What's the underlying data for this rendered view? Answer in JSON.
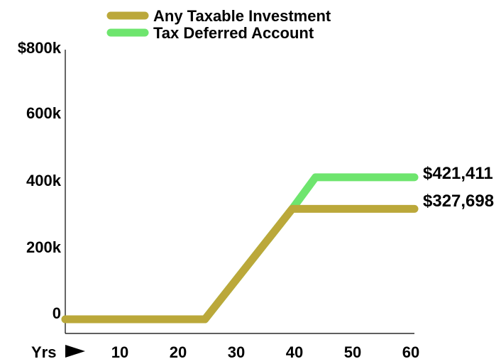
{
  "chart_data": {
    "type": "line",
    "title": "",
    "xlabel": "Yrs",
    "ylabel": "",
    "x_ticks": [
      "10",
      "20",
      "30",
      "40",
      "50",
      "60"
    ],
    "y_ticks": [
      "0",
      "200k",
      "400k",
      "600k",
      "$800k"
    ],
    "xlim": [
      0,
      60
    ],
    "ylim": [
      0,
      800000
    ],
    "grid": false,
    "legend_placement": "top",
    "series": [
      {
        "name": "Any Taxable Investment",
        "color": "#bba83a",
        "x": [
          0,
          24,
          39,
          60
        ],
        "y": [
          0,
          0,
          327698,
          327698
        ],
        "end_label": "$327,698"
      },
      {
        "name": "Tax Deferred Account",
        "color": "#6ee56e",
        "x": [
          0,
          24,
          39,
          43,
          60
        ],
        "y": [
          0,
          0,
          327698,
          421411,
          421411
        ],
        "end_label": "$421,411"
      }
    ]
  }
}
